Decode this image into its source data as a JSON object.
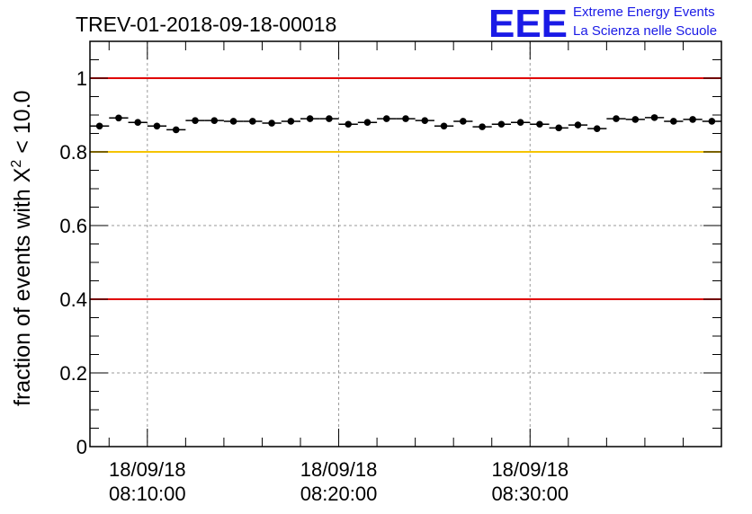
{
  "header": {
    "run_title": "TREV-01-2018-09-18-00018",
    "logo_text": "EEE",
    "logo_line1": "Extreme Energy Events",
    "logo_line2": "La Scienza nelle Scuole"
  },
  "chart_data": {
    "type": "scatter",
    "title": "TREV-01-2018-09-18-00018",
    "ylabel_prefix": "fraction of events with ",
    "ylabel_symbol": "X",
    "ylabel_sup": "2",
    "ylabel_suffix": " < 10.0",
    "xlabel": "",
    "ylim": [
      0,
      1.1
    ],
    "xlim_minutes": [
      8.0,
      41.0
    ],
    "yticks": [
      0,
      0.2,
      0.4,
      0.6,
      0.8,
      1
    ],
    "ytick_labels": [
      "0",
      "0.2",
      "0.4",
      "0.6",
      "0.8",
      "1"
    ],
    "xticks": [
      {
        "minutes": 11,
        "date": "18/09/18",
        "time": "08:10:00"
      },
      {
        "minutes": 21,
        "date": "18/09/18",
        "time": "08:20:00"
      },
      {
        "minutes": 31,
        "date": "18/09/18",
        "time": "08:30:00"
      }
    ],
    "reference_lines": [
      {
        "y": 1.0,
        "color": "#e00000"
      },
      {
        "y": 0.8,
        "color": "#f5c400"
      },
      {
        "y": 0.4,
        "color": "#e00000"
      }
    ],
    "grid": true,
    "marker_color": "#000000",
    "points": [
      {
        "start": 8.0,
        "end": 9.0,
        "y": 0.87
      },
      {
        "start": 9.0,
        "end": 10.0,
        "y": 0.892
      },
      {
        "start": 10.0,
        "end": 11.0,
        "y": 0.88
      },
      {
        "start": 11.0,
        "end": 12.0,
        "y": 0.87
      },
      {
        "start": 12.0,
        "end": 13.0,
        "y": 0.86
      },
      {
        "start": 13.0,
        "end": 14.0,
        "y": 0.885
      },
      {
        "start": 14.0,
        "end": 15.0,
        "y": 0.885
      },
      {
        "start": 15.0,
        "end": 16.0,
        "y": 0.883
      },
      {
        "start": 16.0,
        "end": 17.0,
        "y": 0.883
      },
      {
        "start": 17.0,
        "end": 18.0,
        "y": 0.878
      },
      {
        "start": 18.0,
        "end": 19.0,
        "y": 0.883
      },
      {
        "start": 19.0,
        "end": 20.0,
        "y": 0.89
      },
      {
        "start": 20.0,
        "end": 21.0,
        "y": 0.89
      },
      {
        "start": 21.0,
        "end": 22.0,
        "y": 0.875
      },
      {
        "start": 22.0,
        "end": 23.0,
        "y": 0.88
      },
      {
        "start": 23.0,
        "end": 24.0,
        "y": 0.89
      },
      {
        "start": 24.0,
        "end": 25.0,
        "y": 0.89
      },
      {
        "start": 25.0,
        "end": 26.0,
        "y": 0.885
      },
      {
        "start": 26.0,
        "end": 27.0,
        "y": 0.87
      },
      {
        "start": 27.0,
        "end": 28.0,
        "y": 0.883
      },
      {
        "start": 28.0,
        "end": 29.0,
        "y": 0.868
      },
      {
        "start": 29.0,
        "end": 30.0,
        "y": 0.875
      },
      {
        "start": 30.0,
        "end": 31.0,
        "y": 0.88
      },
      {
        "start": 31.0,
        "end": 32.0,
        "y": 0.875
      },
      {
        "start": 32.0,
        "end": 33.0,
        "y": 0.865
      },
      {
        "start": 33.0,
        "end": 34.0,
        "y": 0.873
      },
      {
        "start": 34.0,
        "end": 35.0,
        "y": 0.863
      },
      {
        "start": 35.0,
        "end": 36.0,
        "y": 0.89
      },
      {
        "start": 36.0,
        "end": 37.0,
        "y": 0.888
      },
      {
        "start": 37.0,
        "end": 38.0,
        "y": 0.893
      },
      {
        "start": 38.0,
        "end": 39.0,
        "y": 0.883
      },
      {
        "start": 39.0,
        "end": 40.0,
        "y": 0.888
      },
      {
        "start": 40.0,
        "end": 41.0,
        "y": 0.883
      }
    ]
  }
}
